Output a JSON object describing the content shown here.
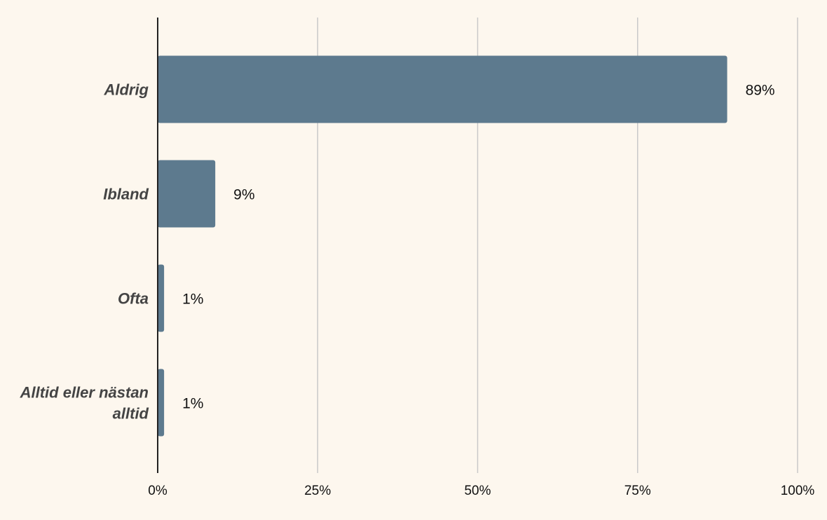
{
  "chart_data": {
    "type": "bar",
    "orientation": "horizontal",
    "title": "",
    "xlabel": "",
    "ylabel": "",
    "categories": [
      [
        "Aldrig"
      ],
      [
        "Ibland"
      ],
      [
        "Ofta"
      ],
      [
        "Alltid eller nästan",
        "alltid"
      ]
    ],
    "values": [
      89,
      9,
      1,
      1
    ],
    "value_labels": [
      "89%",
      "9%",
      "1%",
      "1%"
    ],
    "xlim": [
      0,
      100
    ],
    "x_ticks": [
      0,
      25,
      50,
      75,
      100
    ],
    "x_tick_labels": [
      "0%",
      "25%",
      "50%",
      "75%",
      "100%"
    ],
    "grid": true,
    "legend": "none",
    "bar_color": "#5d7a8e"
  }
}
